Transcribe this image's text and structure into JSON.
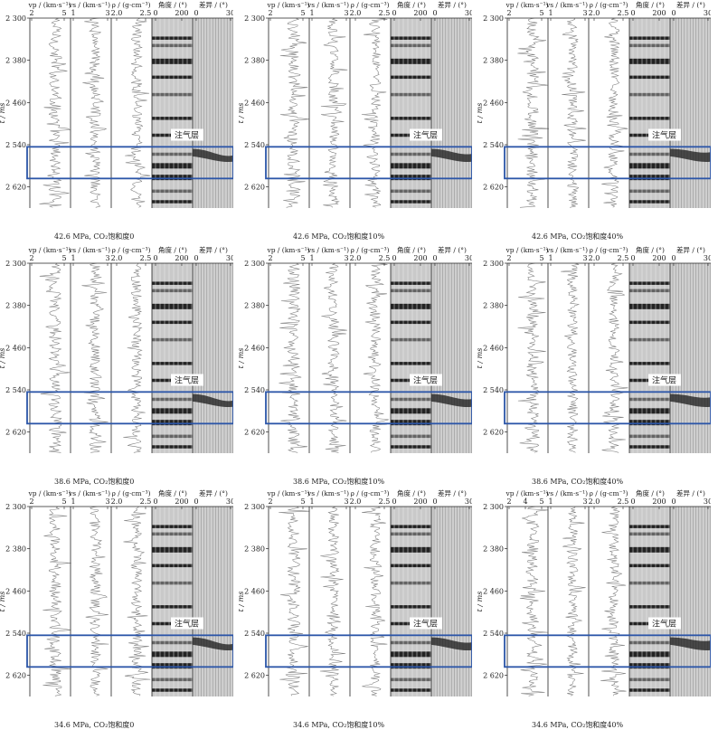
{
  "figure": {
    "y_axis_label": "t / ms",
    "y_ticks": [
      "2 300",
      "2 380",
      "2 460",
      "2 540",
      "2 620"
    ],
    "col_headers": {
      "vp": "vp / (km·s⁻¹)",
      "vs": "vs / (km·s⁻¹)",
      "rho": "ρ / (g·cm⁻³)",
      "angle": "角度 / (°)",
      "diff": "差异 / (°)"
    },
    "col_ticks": {
      "vp": [
        "2",
        "5"
      ],
      "vp_alt": [
        "2",
        "4",
        "5"
      ],
      "vs": [
        "1",
        "3"
      ],
      "rho": [
        "2.0",
        "2.5"
      ],
      "angle": [
        "0",
        "200"
      ],
      "diff": [
        "0",
        "30"
      ]
    },
    "gas_layer_label": "注气层",
    "accent_color": "#2b55a8",
    "panels": [
      {
        "caption": "42.6 MPa, CO₂饱和度0"
      },
      {
        "caption": "42.6 MPa, CO₂饱和度10%"
      },
      {
        "caption": "42.6 MPa, CO₂饱和度40%"
      },
      {
        "caption": "38.6 MPa, CO₂饱和度0"
      },
      {
        "caption": "38.6 MPa, CO₂饱和度10%"
      },
      {
        "caption": "38.6 MPa, CO₂饱和度40%"
      },
      {
        "caption": "34.6 MPa, CO₂饱和度0"
      },
      {
        "caption": "34.6 MPa, CO₂饱和度10%"
      },
      {
        "caption": "34.6 MPa, CO₂饱和度40%"
      }
    ]
  }
}
